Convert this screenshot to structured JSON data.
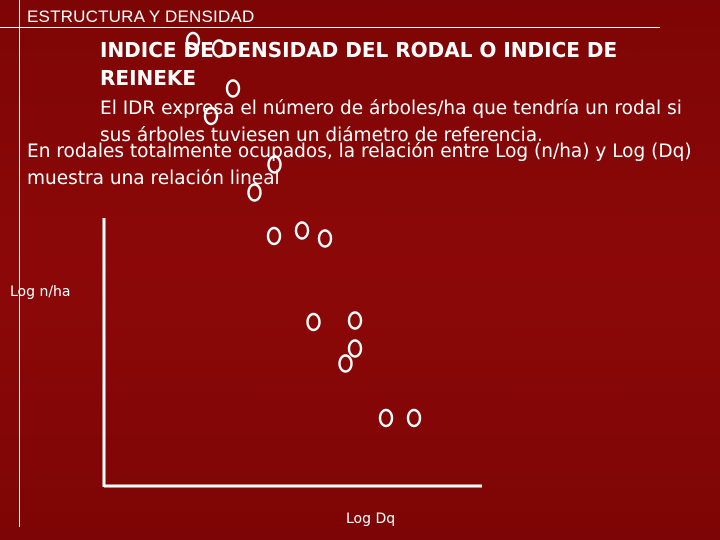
{
  "slide": {
    "section": "ESTRUCTURA Y DENSIDAD",
    "title": "INDICE DE DENSIDAD DEL RODAL O INDICE DE REINEKE",
    "intro": "El IDR expresa el número de árboles/ha que tendría un rodal si sus árboles tuviesen un diámetro de referencia.",
    "body": "En rodales totalmente ocupados, la relación entre Log (n/ha) y Log (Dq) muestra una relación lineal"
  },
  "chart_data": {
    "type": "scatter",
    "xlabel": "Log Dq",
    "ylabel": "Log n/ha",
    "points": [
      {
        "x": 1.78,
        "y": 8.9
      },
      {
        "x": 2.3,
        "y": 8.75
      },
      {
        "x": 2.58,
        "y": 7.95
      },
      {
        "x": 2.14,
        "y": 7.4
      },
      {
        "x": 3.41,
        "y": 6.43
      },
      {
        "x": 3.01,
        "y": 5.87
      },
      {
        "x": 3.4,
        "y": 5.0
      },
      {
        "x": 3.96,
        "y": 5.11
      },
      {
        "x": 4.42,
        "y": 4.95
      },
      {
        "x": 4.19,
        "y": 3.28
      },
      {
        "x": 5.02,
        "y": 3.31
      },
      {
        "x": 4.83,
        "y": 2.45
      },
      {
        "x": 5.02,
        "y": 2.75
      },
      {
        "x": 5.64,
        "y": 1.36
      },
      {
        "x": 6.2,
        "y": 1.36
      }
    ]
  }
}
